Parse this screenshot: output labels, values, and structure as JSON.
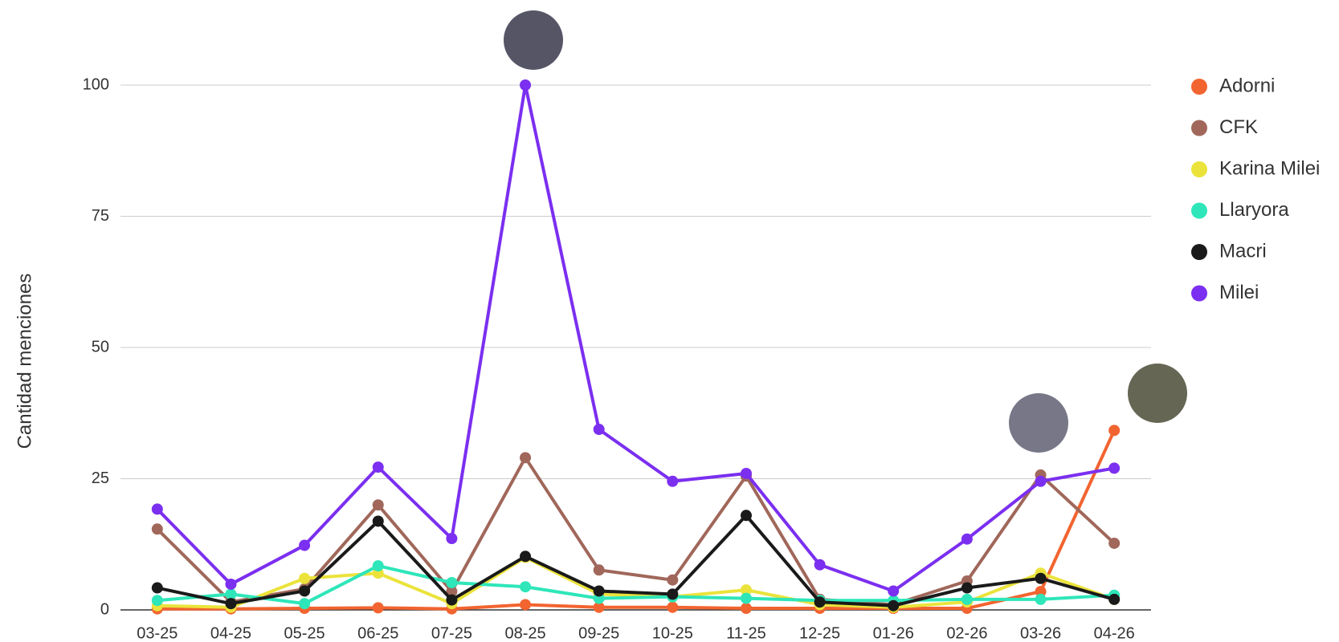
{
  "chart_data": {
    "type": "line",
    "y_label": "Cantidad menciones",
    "categories": [
      "03-25",
      "04-25",
      "05-25",
      "06-25",
      "07-25",
      "08-25",
      "09-25",
      "10-25",
      "11-25",
      "12-25",
      "01-26",
      "02-26",
      "03-26",
      "04-26"
    ],
    "series": [
      {
        "name": "Adorni",
        "color": "#f26430",
        "values": [
          0.2,
          0.2,
          0.3,
          0.4,
          0.2,
          1,
          0.5,
          0.5,
          0.3,
          0.3,
          0.3,
          0.3,
          3.5,
          34.2
        ]
      },
      {
        "name": "CFK",
        "color": "#a0675a",
        "values": [
          15.4,
          1.5,
          4,
          20,
          3.5,
          29,
          7.6,
          5.7,
          25.5,
          2,
          1,
          5.5,
          25.7,
          12.7
        ]
      },
      {
        "name": "Karina Milei",
        "color": "#ebe33b",
        "values": [
          0.8,
          0.5,
          6,
          7,
          1.2,
          10,
          3,
          2.5,
          3.8,
          1,
          0.5,
          1.5,
          7,
          2
        ]
      },
      {
        "name": "Llaryora",
        "color": "#2ee6b9",
        "values": [
          1.8,
          3,
          1.2,
          8.4,
          5.2,
          4.4,
          2.2,
          2.5,
          2.2,
          1.8,
          1.8,
          2,
          2,
          2.8
        ]
      },
      {
        "name": "Macri",
        "color": "#1a1a1a",
        "values": [
          4.2,
          1.2,
          3.6,
          16.9,
          1.9,
          10.2,
          3.6,
          3,
          18,
          1.5,
          0.8,
          4.2,
          6,
          2
        ]
      },
      {
        "name": "Milei",
        "color": "#7b2ff0",
        "values": [
          19.2,
          4.9,
          12.3,
          27.2,
          13.6,
          100,
          34.4,
          24.5,
          26,
          8.6,
          3.6,
          13.5,
          24.5,
          27
        ]
      }
    ],
    "ylim": [
      0,
      100
    ],
    "yticks": [
      0,
      25,
      50,
      75,
      100
    ],
    "grid": true,
    "legend": "right"
  }
}
